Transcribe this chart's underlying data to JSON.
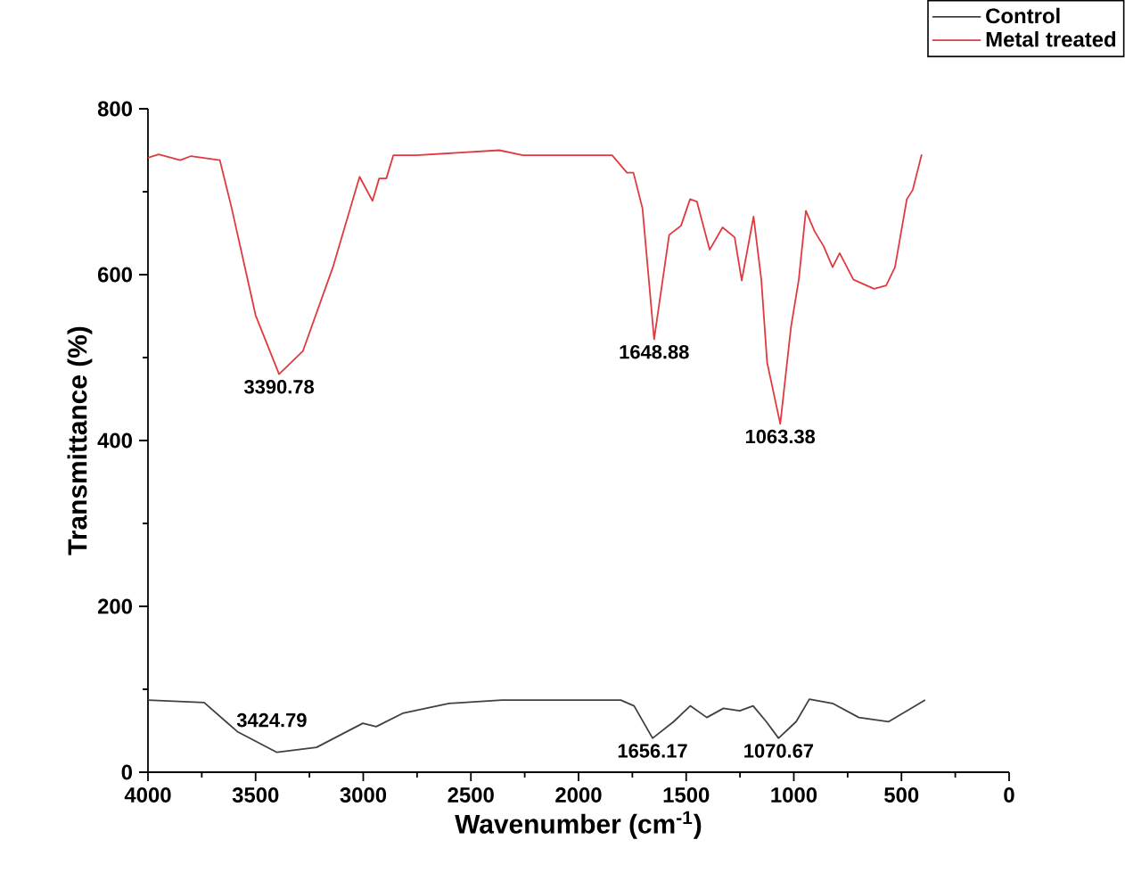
{
  "chart_data": {
    "type": "line",
    "xlabel": "Wavenumber (cm$^{-1}$)",
    "ylabel": "Transmittance (%)",
    "xlim": [
      4000,
      0
    ],
    "xticks": [
      4000,
      3500,
      3000,
      2500,
      2000,
      1500,
      1000,
      500,
      0
    ],
    "ylim": [
      0,
      800
    ],
    "yticks": [
      0,
      200,
      400,
      600,
      800
    ],
    "legend": "top right",
    "grid": false,
    "series": [
      {
        "name": "Control",
        "color": "#404040",
        "x": [
          4000,
          3739,
          3585,
          3401,
          3217,
          3002,
          2940,
          2817,
          2602,
          2356,
          1804,
          1742,
          1656,
          1558,
          1481,
          1404,
          1327,
          1251,
          1189,
          1128,
          1071,
          989,
          928,
          820,
          698,
          559,
          390
        ],
        "values": [
          87,
          84,
          49,
          24,
          30,
          59,
          55,
          71,
          83,
          87,
          87,
          80,
          41,
          61,
          80,
          66,
          77,
          74,
          80,
          61,
          41,
          61,
          88,
          83,
          66,
          61,
          87
        ]
      },
      {
        "name": "Metal treated",
        "color": "#e0393e",
        "x": [
          4000,
          3950,
          3850,
          3800,
          3666,
          3611,
          3500,
          3391,
          3280,
          3141,
          3017,
          2957,
          2926,
          2893,
          2860,
          2755,
          2368,
          2258,
          1844,
          1775,
          1745,
          1703,
          1649,
          1579,
          1524,
          1482,
          1450,
          1391,
          1331,
          1275,
          1242,
          1187,
          1151,
          1124,
          1063,
          1013,
          977,
          944,
          903,
          861,
          820,
          787,
          723,
          627,
          571,
          530,
          475,
          448,
          406
        ],
        "values": [
          741,
          745,
          738,
          743,
          738,
          680,
          551,
          480,
          508,
          609,
          718,
          689,
          716,
          716,
          744,
          744,
          750,
          744,
          744,
          723,
          723,
          680,
          522,
          648,
          659,
          691,
          688,
          630,
          657,
          645,
          593,
          670,
          594,
          494,
          420,
          537,
          594,
          677,
          652,
          634,
          609,
          626,
          594,
          583,
          587,
          609,
          691,
          702,
          745
        ]
      }
    ],
    "annotations": [
      {
        "text": "3390.78",
        "x": 3390.78,
        "y": 480
      },
      {
        "text": "1648.88",
        "x": 1648.88,
        "y": 522
      },
      {
        "text": "1063.38",
        "x": 1063.38,
        "y": 420
      },
      {
        "text": "3424.79",
        "x": 3424.79,
        "y": 24
      },
      {
        "text": "1656.17",
        "x": 1656.17,
        "y": 41
      },
      {
        "text": "1070.67",
        "x": 1070.67,
        "y": 41
      }
    ]
  }
}
